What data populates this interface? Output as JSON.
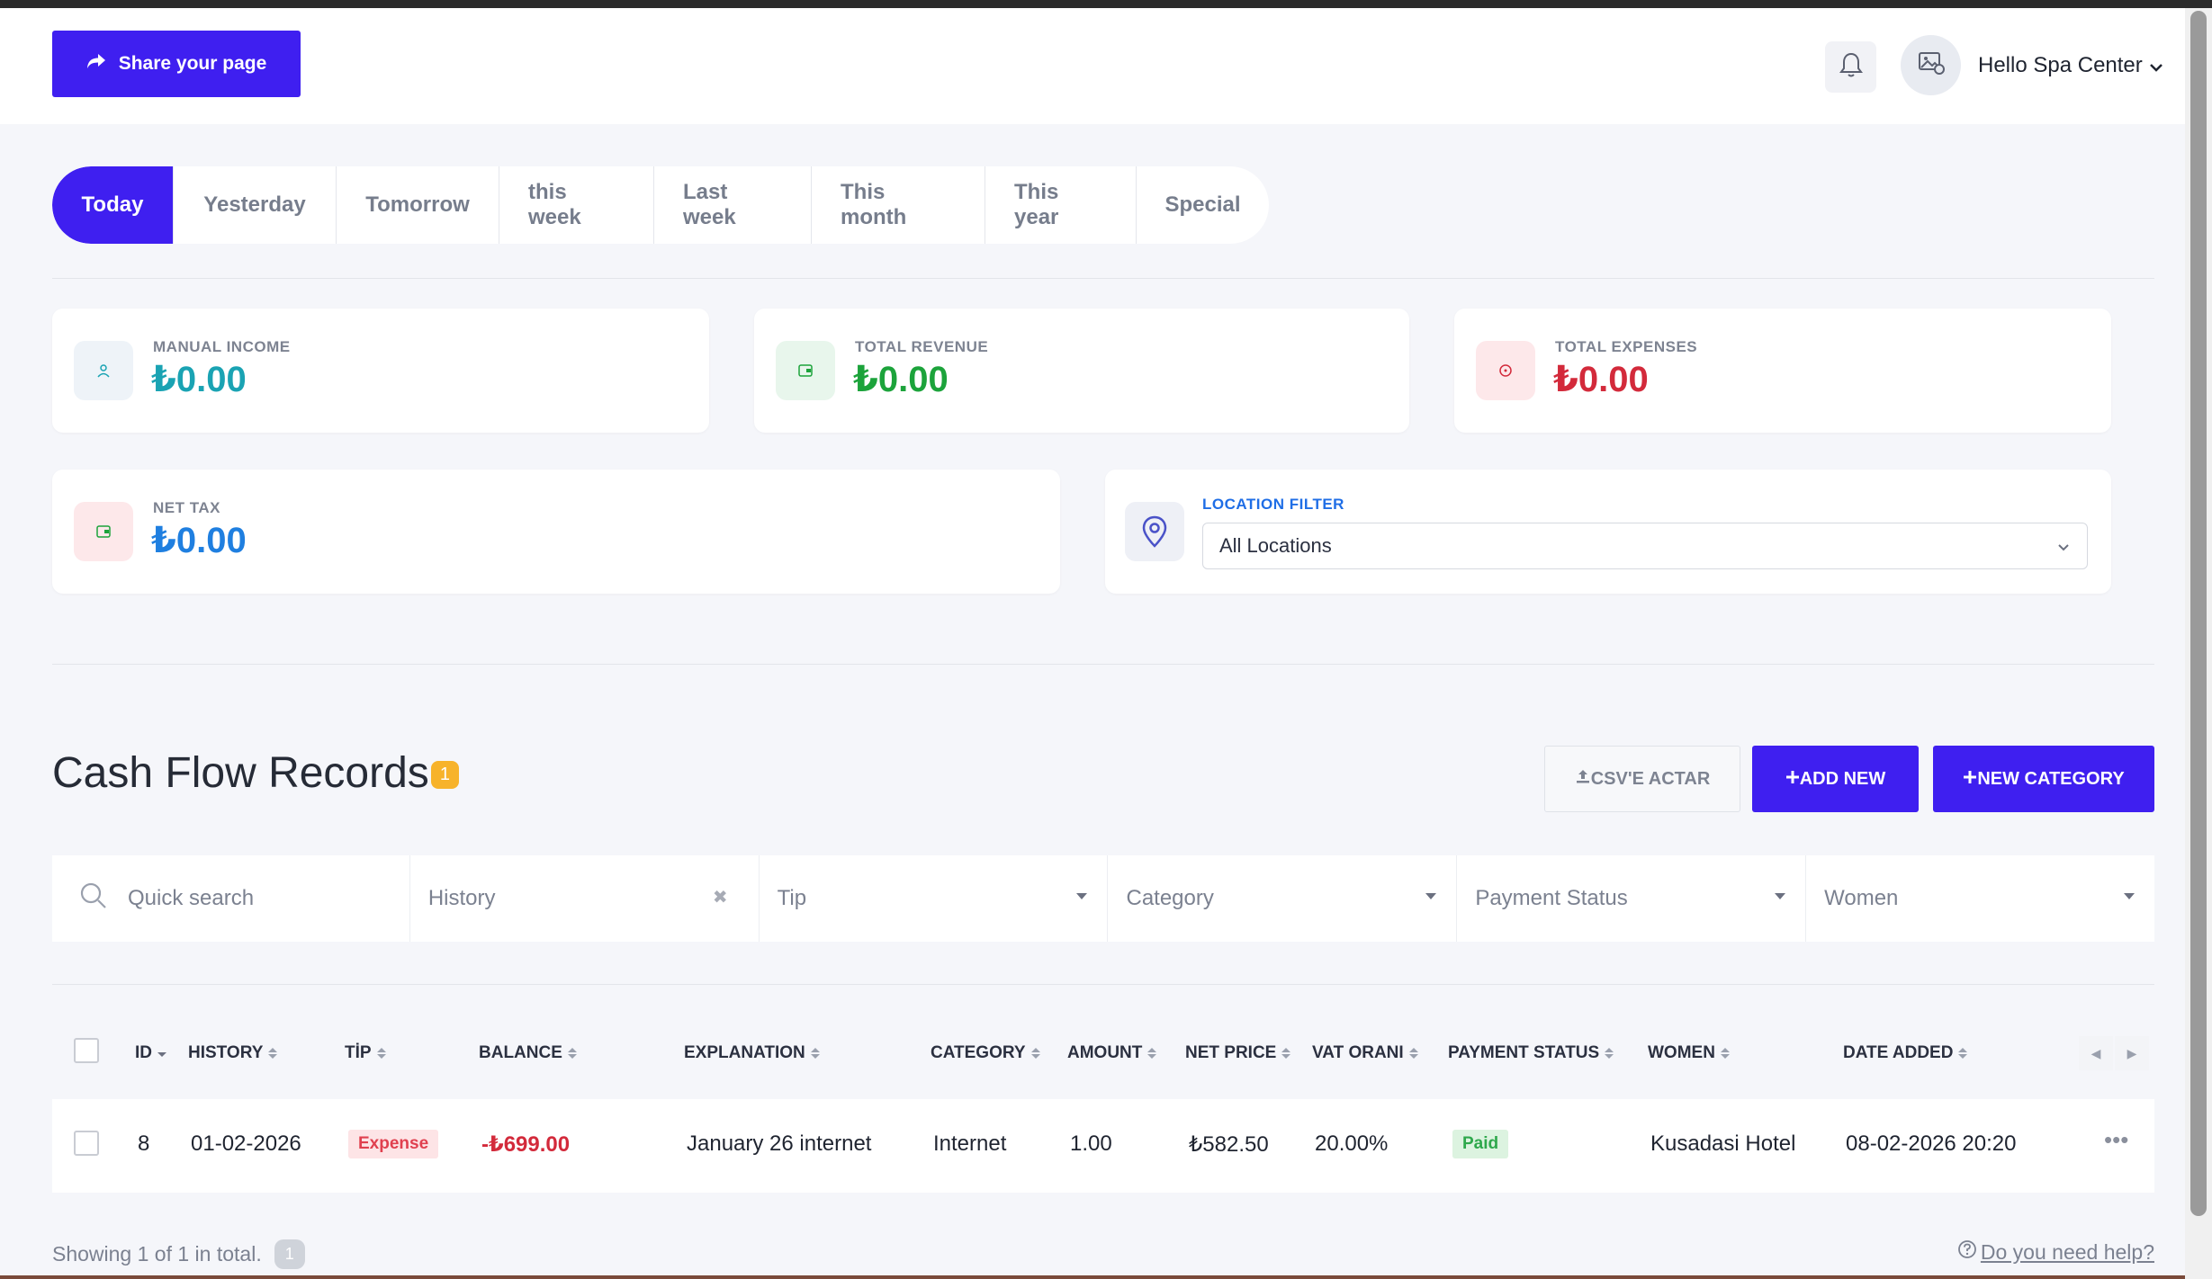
{
  "header": {
    "share_label": "Share your page",
    "user_name": "Hello Spa Center"
  },
  "tabs": [
    {
      "label": "Today",
      "active": true
    },
    {
      "label": "Yesterday"
    },
    {
      "label": "Tomorrow"
    },
    {
      "label": "this week"
    },
    {
      "label": "Last week"
    },
    {
      "label": "This month"
    },
    {
      "label": "This year"
    },
    {
      "label": "Special"
    }
  ],
  "stats": {
    "manual_income": {
      "label": "MANUAL INCOME",
      "value": "₺0.00",
      "icon": "user-icon",
      "color": "#1aa3b3"
    },
    "total_revenue": {
      "label": "TOTAL REVENUE",
      "value": "₺0.00",
      "icon": "wallet-icon",
      "color": "#1ca33b"
    },
    "total_expenses": {
      "label": "TOTAL EXPENSES",
      "value": "₺0.00",
      "icon": "clock-icon",
      "color": "#d32a3b"
    },
    "net_tax": {
      "label": "NET TAX",
      "value": "₺0.00",
      "icon": "receipt-icon",
      "color": "#1f7fe0"
    }
  },
  "location_filter": {
    "label": "LOCATION FILTER",
    "selected": "All Locations"
  },
  "records": {
    "title": "Cash Flow Records",
    "count": "1",
    "csv_label": "CSV'E ACTAR",
    "add_new_label": "ADD NEW",
    "new_category_label": "NEW CATEGORY"
  },
  "filters": {
    "search_placeholder": "Quick search",
    "history": "History",
    "tip": "Tip",
    "category": "Category",
    "payment_status": "Payment Status",
    "women": "Women"
  },
  "table": {
    "columns": [
      "ID",
      "HISTORY",
      "TİP",
      "BALANCE",
      "EXPLANATION",
      "CATEGORY",
      "AMOUNT",
      "NET PRICE",
      "VAT ORANI",
      "PAYMENT STATUS",
      "WOMEN",
      "DATE ADDED"
    ],
    "rows": [
      {
        "id": "8",
        "history": "01-02-2026",
        "tip": "Expense",
        "balance": "-₺699.00",
        "explanation": "January 26 internet",
        "category": "Internet",
        "amount": "1.00",
        "net_price": "₺582.50",
        "vat": "20.00%",
        "payment_status": "Paid",
        "women": "Kusadasi Hotel",
        "date_added": "08-02-2026 20:20"
      }
    ]
  },
  "footer": {
    "showing": "Showing 1 of 1 in total.",
    "page": "1",
    "help": "Do you need help?"
  },
  "colors": {
    "primary": "#3f1ff0",
    "expense": "#d32a3b",
    "paid": "#2ea84c",
    "badge": "#f7b32b"
  }
}
